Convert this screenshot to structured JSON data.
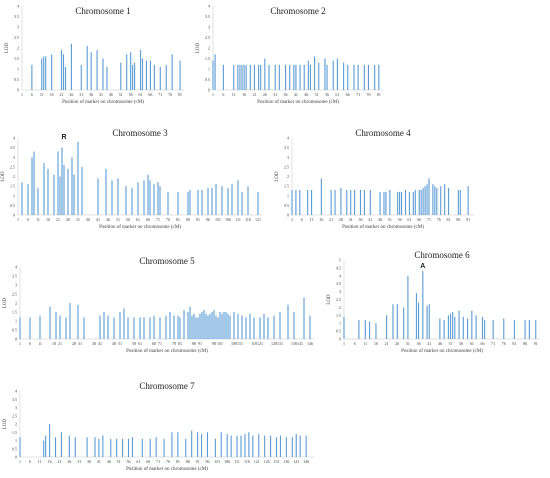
{
  "style": {
    "bar_color": "#5b9bd5",
    "axis_color": "#d9d9d9",
    "text_color": "#404040"
  },
  "chart_data": [
    {
      "type": "bar",
      "title": "Chromosome  1",
      "xlabel": "Position of marker on chromosome (cM)",
      "ylabel": "LOD",
      "ylim": [
        0,
        4
      ],
      "yticks": [
        "0",
        "0.5",
        "1",
        "1.5",
        "2",
        "2.5",
        "3",
        "3.5",
        "4"
      ],
      "xlim": [
        1,
        83
      ],
      "xticks": [
        "1",
        "6",
        "11",
        "16",
        "21",
        "26",
        "31",
        "36",
        "41",
        "46",
        "51",
        "56",
        "61",
        "66",
        "71",
        "76",
        "81"
      ],
      "marker": "",
      "positions": [
        6,
        11,
        12,
        13,
        16,
        21,
        22,
        23,
        26,
        31,
        34,
        36,
        39,
        42,
        44,
        51,
        54,
        56,
        57,
        58,
        61,
        62,
        64,
        66,
        68,
        71,
        74,
        77,
        81
      ],
      "values": [
        1.2,
        1.5,
        1.6,
        1.6,
        1.7,
        1.9,
        1.7,
        1.1,
        2.2,
        1.2,
        2.1,
        1.8,
        1.9,
        1.5,
        1.1,
        1.3,
        1.7,
        1.8,
        1.2,
        1.3,
        1.9,
        1.5,
        1.4,
        1.4,
        1.2,
        1.1,
        1.2,
        1.7,
        1.4
      ]
    },
    {
      "type": "bar",
      "title": "Chromosome  2",
      "xlabel": "Position of marker on chromosome (cM)",
      "ylabel": "LOD",
      "ylim": [
        0,
        4
      ],
      "yticks": [
        "0",
        "0.5",
        "1",
        "1.5",
        "2",
        "2.5",
        "3",
        "3.5",
        "4"
      ],
      "xlim": [
        1,
        83
      ],
      "xticks": [
        "1",
        "6",
        "11",
        "16",
        "21",
        "26",
        "31",
        "36",
        "41",
        "46",
        "51",
        "56",
        "61",
        "66",
        "71",
        "76",
        "81"
      ],
      "marker": "",
      "positions": [
        1,
        2,
        6,
        11,
        13,
        14,
        15,
        16,
        17,
        19,
        21,
        23,
        24,
        26,
        28,
        31,
        33,
        36,
        38,
        40,
        41,
        43,
        45,
        47,
        48,
        50,
        52,
        55,
        56,
        59,
        61,
        64,
        66,
        69,
        71,
        74,
        76,
        79,
        81
      ],
      "values": [
        1.4,
        1.7,
        1.2,
        1.2,
        1.2,
        1.2,
        1.2,
        1.2,
        1.2,
        1.2,
        1.2,
        1.2,
        1.2,
        1.5,
        1.2,
        1.2,
        1.2,
        1.2,
        1.2,
        1.2,
        1.2,
        1.2,
        1.2,
        1.4,
        1.2,
        1.6,
        1.3,
        1.5,
        1.2,
        1.4,
        1.5,
        1.3,
        1.2,
        1.2,
        1.2,
        1.2,
        1.2,
        1.2,
        1.2
      ]
    },
    {
      "type": "bar",
      "title": "Chromosome  3",
      "xlabel": "Position of marker on chromosome (cM)",
      "ylabel": "LOD",
      "ylim": [
        0,
        4
      ],
      "yticks": [
        "0",
        "0.5",
        "1",
        "1.5",
        "2",
        "2.5",
        "3",
        "3.5",
        "4"
      ],
      "xlim": [
        1,
        123
      ],
      "xticks": [
        "1",
        "6",
        "11",
        "16",
        "21",
        "26",
        "31",
        "36",
        "41",
        "46",
        "51",
        "56",
        "61",
        "66",
        "71",
        "76",
        "81",
        "86",
        "91",
        "96",
        "101",
        "106",
        "111",
        "116",
        "121"
      ],
      "marker": "R",
      "marker_x": 24,
      "positions": [
        3,
        6,
        8,
        9,
        11,
        14,
        16,
        19,
        21,
        22,
        23,
        24,
        26,
        28,
        29,
        31,
        33,
        41,
        45,
        48,
        51,
        55,
        58,
        61,
        64,
        66,
        67,
        69,
        71,
        72,
        76,
        81,
        86,
        87,
        91,
        93,
        96,
        98,
        100,
        103,
        106,
        108,
        111,
        113,
        116,
        121
      ],
      "values": [
        1.7,
        1.6,
        3.0,
        3.3,
        1.4,
        2.7,
        2.4,
        2.1,
        3.3,
        2.0,
        3.5,
        2.6,
        2.4,
        3.0,
        2.1,
        3.8,
        2.5,
        1.9,
        2.4,
        1.8,
        1.9,
        1.5,
        1.4,
        1.7,
        1.8,
        2.1,
        1.8,
        1.6,
        1.7,
        1.5,
        1.2,
        1.2,
        1.2,
        1.3,
        1.3,
        1.3,
        1.4,
        1.4,
        1.6,
        1.5,
        1.4,
        1.6,
        1.8,
        1.2,
        1.5,
        1.2
      ]
    },
    {
      "type": "bar",
      "title": "Chromosome  4",
      "xlabel": "Position of marker on chromosome (cM)",
      "ylabel": "LOD",
      "ylim": [
        0,
        4
      ],
      "yticks": [
        "0",
        "0.5",
        "1",
        "1.5",
        "2",
        "2.5",
        "3",
        "3.5",
        "4"
      ],
      "xlim": [
        1,
        94
      ],
      "xticks": [
        "1",
        "6",
        "11",
        "16",
        "21",
        "26",
        "31",
        "36",
        "41",
        "46",
        "51",
        "56",
        "61",
        "66",
        "71",
        "76",
        "81",
        "86",
        "91"
      ],
      "marker": "",
      "positions": [
        1,
        3,
        5,
        9,
        11,
        16,
        21,
        23,
        26,
        29,
        31,
        33,
        36,
        38,
        41,
        46,
        48,
        49,
        51,
        55,
        56,
        57,
        59,
        61,
        63,
        64,
        66,
        67,
        68,
        69,
        70,
        71,
        73,
        74,
        75,
        77,
        79,
        81,
        86,
        87,
        91
      ],
      "values": [
        1.3,
        1.3,
        1.3,
        1.3,
        1.3,
        1.9,
        1.3,
        1.3,
        1.4,
        1.3,
        1.3,
        1.3,
        1.3,
        1.3,
        1.3,
        1.2,
        1.2,
        1.2,
        1.3,
        1.2,
        1.2,
        1.2,
        1.3,
        1.2,
        1.2,
        1.3,
        1.3,
        1.3,
        1.4,
        1.5,
        1.6,
        1.9,
        1.6,
        1.5,
        1.4,
        1.5,
        1.6,
        1.4,
        1.3,
        1.3,
        1.5
      ]
    },
    {
      "type": "bar",
      "title": "Chromosome  5",
      "xlabel": "Position of marker on chromosome (cM)",
      "ylabel": "LOD",
      "ylim": [
        0,
        4
      ],
      "yticks": [
        "0",
        "0.5",
        "1",
        "1.5",
        "2",
        "2.5",
        "3",
        "3.5",
        "4"
      ],
      "xlim": [
        1,
        148
      ],
      "xticks": [
        "1",
        "6",
        "11",
        "18",
        "21",
        "28",
        "31",
        "38",
        "41",
        "48",
        "51",
        "58",
        "61",
        "68",
        "71",
        "78",
        "81",
        "88",
        "91",
        "98",
        "101",
        "108",
        "111",
        "118",
        "121",
        "128",
        "131",
        "138",
        "141",
        "146"
      ],
      "marker": "",
      "positions": [
        1,
        6,
        11,
        16,
        19,
        21,
        24,
        26,
        30,
        33,
        41,
        43,
        45,
        48,
        51,
        53,
        55,
        58,
        61,
        63,
        66,
        68,
        71,
        74,
        76,
        78,
        80,
        81,
        83,
        85,
        86,
        87,
        88,
        89,
        90,
        91,
        92,
        93,
        94,
        95,
        96,
        97,
        98,
        99,
        100,
        101,
        102,
        103,
        104,
        105,
        106,
        108,
        110,
        112,
        114,
        116,
        118,
        121,
        123,
        125,
        128,
        131,
        135,
        138,
        143,
        146
      ],
      "values": [
        1.2,
        1.2,
        1.3,
        1.8,
        1.5,
        1.3,
        1.2,
        2.0,
        1.9,
        1.2,
        1.3,
        1.5,
        1.3,
        1.2,
        1.5,
        1.7,
        1.2,
        1.2,
        1.2,
        1.2,
        1.2,
        1.3,
        1.2,
        1.3,
        1.5,
        1.3,
        1.3,
        1.2,
        1.6,
        1.5,
        1.8,
        1.3,
        1.4,
        1.2,
        1.2,
        1.4,
        1.5,
        1.6,
        1.4,
        1.3,
        1.4,
        1.5,
        1.6,
        1.3,
        1.2,
        1.5,
        1.4,
        1.5,
        1.5,
        1.4,
        1.3,
        1.5,
        1.4,
        1.3,
        1.2,
        1.4,
        1.2,
        1.2,
        1.4,
        1.2,
        1.3,
        1.5,
        1.9,
        1.5,
        2.3,
        1.3
      ]
    },
    {
      "type": "bar",
      "title": "Chromosome 6",
      "xlabel": "Position of marker on chromosome (cM)",
      "ylabel": "LOD",
      "ylim": [
        0,
        5
      ],
      "yticks": [
        "0",
        "0.5",
        "1",
        "1.5",
        "2",
        "2.5",
        "3",
        "3.5",
        "4",
        "4.5",
        "5"
      ],
      "xlim": [
        1,
        93
      ],
      "xticks": [
        "1",
        "6",
        "11",
        "16",
        "21",
        "26",
        "31",
        "36",
        "41",
        "46",
        "51",
        "56",
        "61",
        "66",
        "71",
        "76",
        "81",
        "86",
        "91"
      ],
      "marker": "A",
      "marker_x": 38,
      "positions": [
        1,
        8,
        11,
        13,
        16,
        21,
        24,
        26,
        29,
        31,
        35,
        36,
        38,
        40,
        41,
        46,
        48,
        50,
        51,
        52,
        53,
        55,
        57,
        59,
        61,
        63,
        66,
        67,
        71,
        76,
        81,
        86,
        88,
        91
      ],
      "values": [
        1.4,
        1.2,
        1.2,
        1.1,
        1.0,
        1.5,
        2.2,
        2.2,
        2.0,
        4.0,
        2.9,
        2.3,
        4.3,
        2.1,
        2.2,
        1.3,
        1.2,
        1.5,
        1.6,
        1.7,
        1.4,
        1.8,
        1.4,
        1.3,
        1.8,
        1.5,
        1.4,
        1.2,
        1.2,
        1.3,
        1.2,
        1.2,
        1.2,
        1.2
      ]
    },
    {
      "type": "bar",
      "title": "Chromosome  7",
      "xlabel": "Position of marker on chromosome (cM)",
      "ylabel": "LOD",
      "ylim": [
        0,
        4
      ],
      "yticks": [
        "0",
        "0.5",
        "1",
        "1.5",
        "2",
        "2.5",
        "3",
        "3.5",
        "4"
      ],
      "xlim": [
        1,
        150
      ],
      "xticks": [
        "1",
        "6",
        "11",
        "16",
        "21",
        "26",
        "31",
        "36",
        "41",
        "46",
        "51",
        "56",
        "61",
        "66",
        "71",
        "76",
        "81",
        "86",
        "91",
        "96",
        "101",
        "106",
        "111",
        "116",
        "121",
        "126",
        "131",
        "136",
        "141",
        "146"
      ],
      "marker": "",
      "positions": [
        1,
        13,
        14,
        16,
        19,
        22,
        26,
        29,
        35,
        39,
        41,
        43,
        47,
        50,
        53,
        56,
        58,
        63,
        67,
        70,
        74,
        78,
        81,
        85,
        88,
        91,
        93,
        96,
        100,
        103,
        106,
        108,
        111,
        113,
        115,
        117,
        119,
        122,
        125,
        128,
        131,
        133,
        136,
        139,
        141,
        143,
        146
      ],
      "values": [
        1.2,
        1.0,
        1.3,
        2.0,
        1.2,
        1.5,
        1.3,
        1.2,
        1.2,
        1.2,
        1.1,
        1.3,
        1.1,
        1.1,
        1.1,
        1.1,
        1.2,
        1.1,
        1.1,
        1.2,
        1.1,
        1.5,
        1.5,
        1.1,
        1.6,
        1.5,
        1.4,
        1.5,
        1.1,
        1.5,
        1.4,
        1.3,
        1.3,
        1.3,
        1.4,
        1.5,
        1.3,
        1.4,
        1.3,
        1.3,
        1.2,
        1.3,
        1.2,
        1.2,
        1.4,
        1.3,
        1.3
      ]
    }
  ]
}
